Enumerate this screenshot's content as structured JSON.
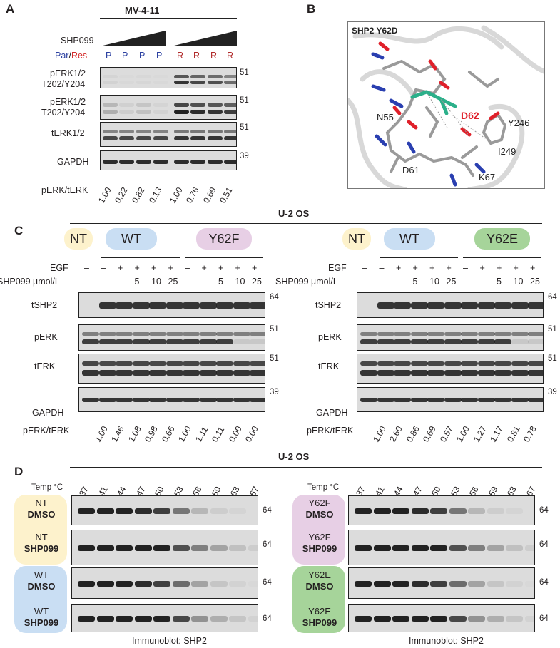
{
  "panels": {
    "A": "A",
    "B": "B",
    "C": "C",
    "D": "D"
  },
  "panelA": {
    "title": "MV-4-11",
    "shp_label": "SHP099",
    "par_label": "Par",
    "slash": "/",
    "res_label": "Res",
    "lanes": [
      "P",
      "P",
      "P",
      "P",
      "R",
      "R",
      "R",
      "R"
    ],
    "rows": [
      "pERK1/2\nT202/Y204",
      "pERK1/2\nT202/Y204",
      "tERK1/2",
      "GAPDH"
    ],
    "row1_line1": "pERK1/2",
    "row1_line2": "T202/Y204",
    "row2_line1": "pERK1/2",
    "row2_line2": "T202/Y204",
    "row3": "tERK1/2",
    "row4": "GAPDH",
    "mw": [
      "51",
      "51",
      "51",
      "39"
    ],
    "ratio_label": "pERK/tERK",
    "ratios": [
      "1.00",
      "0.22",
      "0.82",
      "0.13",
      "1.00",
      "0.76",
      "0.69",
      "0.51"
    ]
  },
  "panelB": {
    "title": "SHP2 Y62D",
    "residues": {
      "d62": "D62",
      "n55": "N55",
      "y246": "Y246",
      "i249": "I249",
      "d61": "D61",
      "k67": "K67"
    },
    "colors": {
      "d62": "#e0202a",
      "mutant": "#2bb08a",
      "oxygen": "#e0202a",
      "nitrogen": "#2a3fb0"
    }
  },
  "panelC": {
    "title": "U-2 OS",
    "left": {
      "pills": [
        "NT",
        "WT",
        "Y62F"
      ],
      "egf_label": "EGF",
      "shp_label": "SHP099 µmol/L",
      "egf": [
        "–",
        "–",
        "+",
        "+",
        "+",
        "+",
        "–",
        "+",
        "+",
        "+",
        "+"
      ],
      "shp": [
        "–",
        "–",
        "–",
        "5",
        "10",
        "25",
        "–",
        "–",
        "5",
        "10",
        "25"
      ],
      "rows": [
        "tSHP2",
        "pERK",
        "tERK",
        "GAPDH"
      ],
      "mw": [
        "64",
        "51",
        "51",
        "39"
      ],
      "ratio_label": "pERK/tERK",
      "ratios": [
        "1.00",
        "1.46",
        "1.08",
        "0.98",
        "0.66",
        "1.00",
        "1.11",
        "0.11",
        "0.00",
        "0.00"
      ]
    },
    "right": {
      "pills": [
        "NT",
        "WT",
        "Y62E"
      ],
      "egf_label": "EGF",
      "shp_label": "SHP099 µmol/L",
      "egf": [
        "–",
        "–",
        "+",
        "+",
        "+",
        "+",
        "–",
        "+",
        "+",
        "+",
        "+"
      ],
      "shp": [
        "–",
        "–",
        "–",
        "5",
        "10",
        "25",
        "–",
        "–",
        "5",
        "10",
        "25"
      ],
      "rows": [
        "tSHP2",
        "pERK",
        "tERK",
        "GAPDH"
      ],
      "mw": [
        "64",
        "51",
        "51",
        "39"
      ],
      "ratio_label": "pERK/tERK",
      "ratios": [
        "1.00",
        "2.60",
        "0.86",
        "0.69",
        "0.57",
        "1.00",
        "1.27",
        "1.17",
        "0.81",
        "0.78"
      ]
    },
    "pill_colors": {
      "NT": "#fdf2cc",
      "WT": "#c9def3",
      "Y62F": "#e7cfe5",
      "Y62E": "#a6d49a"
    }
  },
  "panelD": {
    "title": "U-2 OS",
    "temp_label": "Temp °C",
    "temps": [
      "37",
      "41",
      "44",
      "47",
      "50",
      "53",
      "56",
      "59",
      "63",
      "67"
    ],
    "left_labels": [
      [
        "NT",
        "DMSO"
      ],
      [
        "NT",
        "SHP099"
      ],
      [
        "WT",
        "DMSO"
      ],
      [
        "WT",
        "SHP099"
      ]
    ],
    "right_labels": [
      [
        "Y62F",
        "DMSO"
      ],
      [
        "Y62F",
        "SHP099"
      ],
      [
        "Y62E",
        "DMSO"
      ],
      [
        "Y62E",
        "SHP099"
      ]
    ],
    "mw": "64",
    "footer": "Immunoblot: SHP2"
  }
}
